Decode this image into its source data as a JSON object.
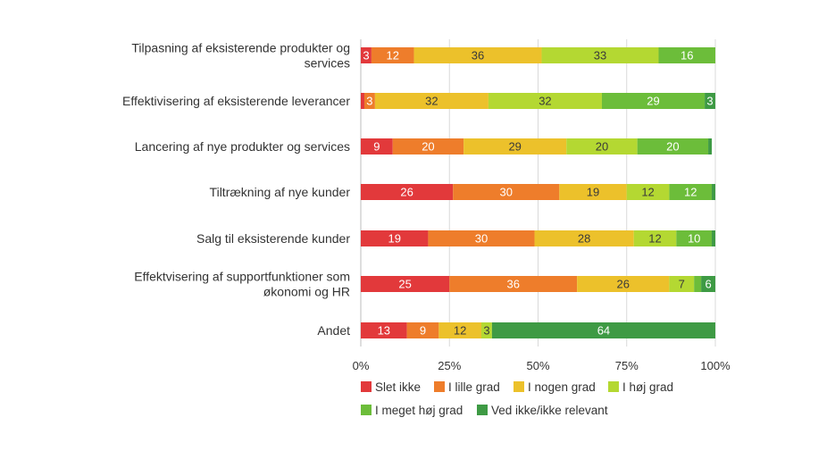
{
  "chart_data": {
    "type": "bar",
    "orientation": "horizontal",
    "stacked": true,
    "title": "",
    "xlabel": "",
    "ylabel": "",
    "xlim": [
      0,
      100
    ],
    "xticks": [
      0,
      25,
      50,
      75,
      100
    ],
    "tick_suffix": "%",
    "grid": true,
    "legend_position": "bottom",
    "categories": [
      [
        "Tilpasning af eksisterende produkter og",
        "services"
      ],
      [
        "Effektivisering af eksisterende leverancer"
      ],
      [
        "Lancering af nye produkter og services"
      ],
      [
        "Tiltrækning af nye kunder"
      ],
      [
        "Salg til eksisterende kunder"
      ],
      [
        "Effektvisering af supportfunktioner som",
        "økonomi og HR"
      ],
      [
        "Andet"
      ]
    ],
    "series": [
      {
        "name": "Slet ikke",
        "color": "#e2393b",
        "values": [
          3,
          1,
          9,
          26,
          19,
          25,
          13
        ]
      },
      {
        "name": "I lille grad",
        "color": "#ee7d2b",
        "values": [
          12,
          3,
          20,
          30,
          30,
          36,
          9
        ]
      },
      {
        "name": "I nogen grad",
        "color": "#ecc12b",
        "values": [
          36,
          32,
          29,
          19,
          28,
          26,
          12
        ]
      },
      {
        "name": "I høj grad",
        "color": "#b4d832",
        "values": [
          33,
          32,
          20,
          12,
          12,
          7,
          3
        ]
      },
      {
        "name": "I meget høj grad",
        "color": "#6cbd3a",
        "values": [
          16,
          29,
          20,
          12,
          10,
          2,
          0
        ]
      },
      {
        "name": "Ved ikke/ikke relevant",
        "color": "#3e9a44",
        "values": [
          0,
          3,
          1,
          1,
          1,
          6,
          64
        ]
      }
    ],
    "bar_labels": [
      [
        "3",
        "12",
        "36",
        "33",
        "16",
        ""
      ],
      [
        "",
        "3",
        "32",
        "32",
        "29",
        "3"
      ],
      [
        "9",
        "20",
        "29",
        "20",
        "20",
        ""
      ],
      [
        "26",
        "30",
        "19",
        "12",
        "12",
        ""
      ],
      [
        "19",
        "30",
        "28",
        "12",
        "10",
        ""
      ],
      [
        "25",
        "36",
        "26",
        "7",
        "",
        "6"
      ],
      [
        "13",
        "9",
        "12",
        "3",
        "",
        "64"
      ]
    ]
  }
}
